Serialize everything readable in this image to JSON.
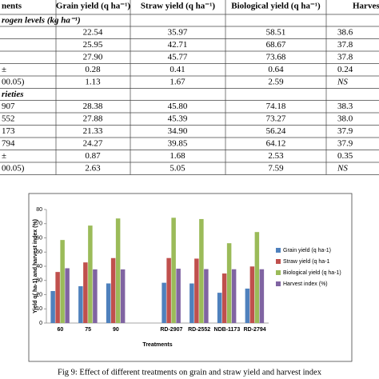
{
  "table": {
    "header": [
      "nents",
      "Grain yield (q ha⁻¹)",
      "Straw yield (q ha⁻¹)",
      "Biological yield (q ha⁻¹)",
      "Harvest inde"
    ],
    "sections": [
      {
        "title": "rogen levels (kg ha⁻¹)",
        "rows": [
          [
            "",
            "22.54",
            "35.97",
            "58.51",
            "38.6"
          ],
          [
            "",
            "25.95",
            "42.71",
            "68.67",
            "37.8"
          ],
          [
            "",
            "27.90",
            "45.77",
            "73.68",
            "37.8"
          ],
          [
            "±",
            "0.28",
            "0.41",
            "0.64",
            "0.24"
          ],
          [
            "00.05)",
            "1.13",
            "1.67",
            "2.59",
            "NS"
          ]
        ]
      },
      {
        "title": "rieties",
        "rows": [
          [
            "907",
            "28.38",
            "45.80",
            "74.18",
            "38.3"
          ],
          [
            "552",
            "27.88",
            "45.39",
            "73.27",
            "38.0"
          ],
          [
            "173",
            "21.33",
            "34.90",
            "56.24",
            "37.9"
          ],
          [
            "794",
            "24.27",
            "39.85",
            "64.12",
            "37.9"
          ],
          [
            "±",
            "0.87",
            "1.68",
            "2.53",
            "0.35"
          ],
          [
            "00.05)",
            "2.63",
            "5.05",
            "7.59",
            "NS"
          ]
        ]
      }
    ]
  },
  "chart_data": {
    "type": "bar",
    "x_label": "Treatments",
    "y_label": "Yield q( ha-1) and harvest index (%)",
    "categories": [
      "60",
      "75",
      "90",
      null,
      "RD-2907",
      "RD-2552",
      "NDB-1173",
      "RD-2794"
    ],
    "series": [
      {
        "name": "Grain yield (q ha-1)",
        "color": "#4f81bd",
        "values": [
          22.54,
          25.95,
          27.9,
          null,
          28.38,
          27.88,
          21.33,
          24.27
        ]
      },
      {
        "name": "Straw yield (q ha-1",
        "color": "#c0504d",
        "values": [
          35.97,
          42.71,
          45.77,
          null,
          45.8,
          45.39,
          34.9,
          39.85
        ]
      },
      {
        "name": "Biological yield (q ha-1)",
        "color": "#9bbb59",
        "values": [
          58.51,
          68.67,
          73.68,
          null,
          74.18,
          73.27,
          56.24,
          64.12
        ]
      },
      {
        "name": "Harvest index (%)",
        "color": "#8064a2",
        "values": [
          38.6,
          37.8,
          37.8,
          null,
          38.3,
          38.0,
          37.9,
          37.9
        ]
      }
    ],
    "ylim": [
      0,
      80
    ],
    "yticks": [
      0,
      10,
      20,
      30,
      40,
      50,
      60,
      70,
      80
    ],
    "legend": "right"
  },
  "caption": "Fig 9: Effect of different treatments on grain and straw yield and harvest index"
}
